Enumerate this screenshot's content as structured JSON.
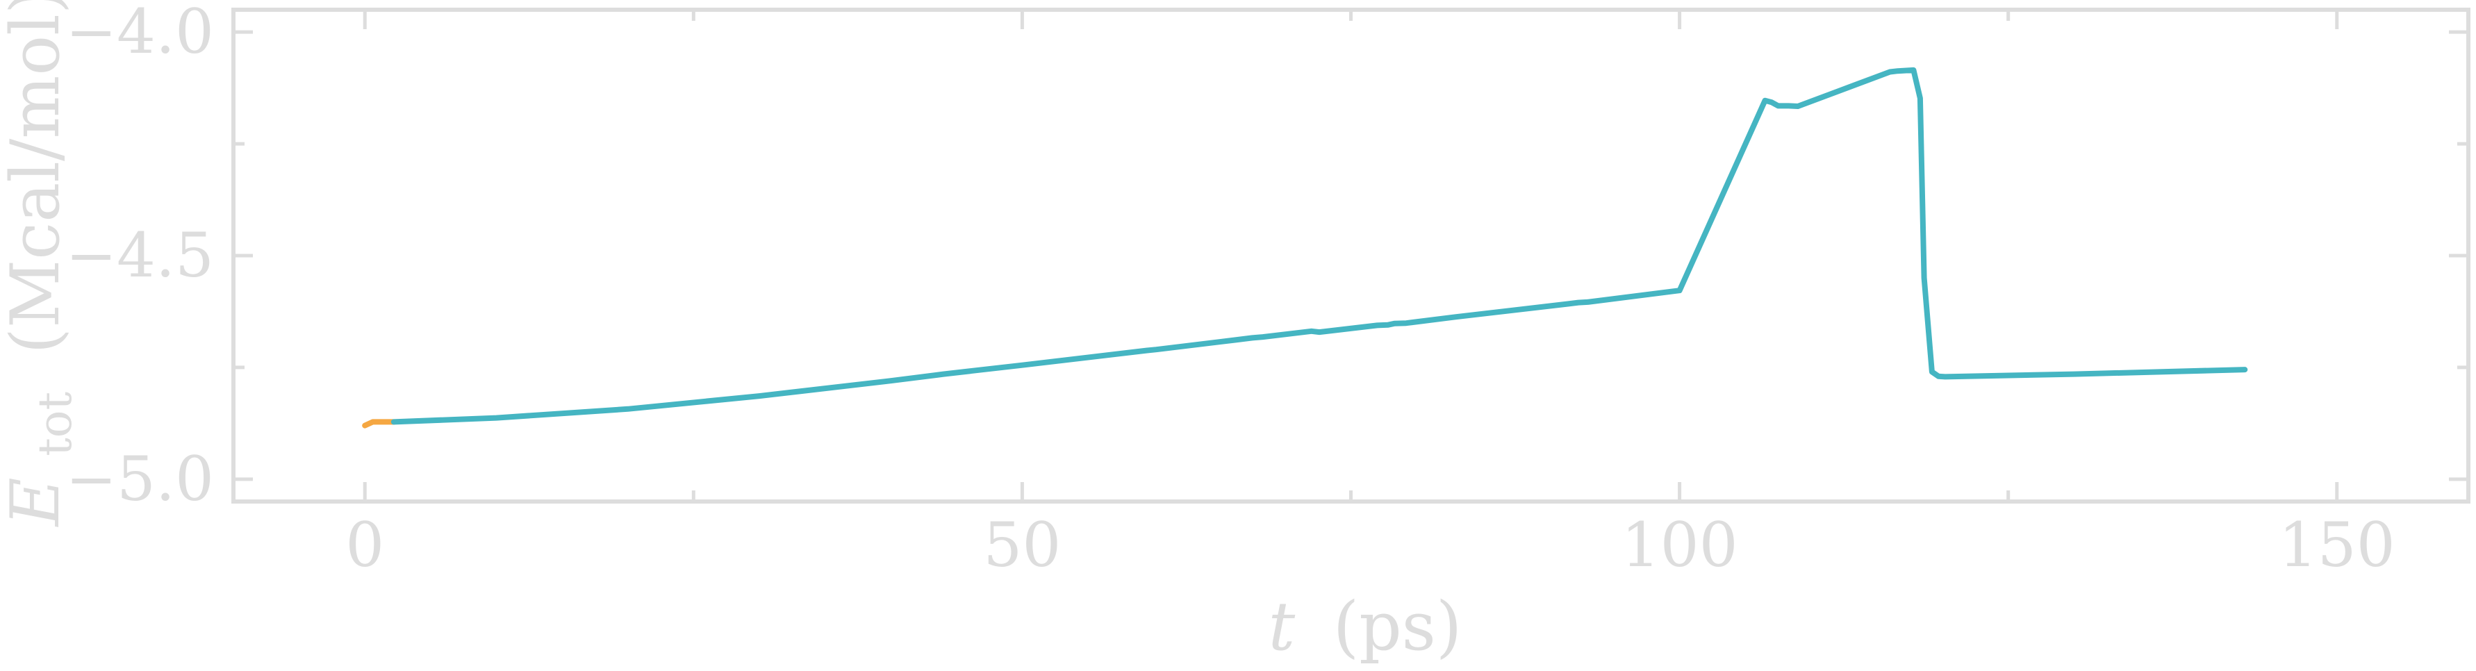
{
  "chart_data": {
    "type": "line",
    "xlabel_var": "t",
    "xlabel_unit": "(ps)",
    "ylabel_var": "E",
    "ylabel_sub": "tot",
    "ylabel_unit": "(Mcal/mol)",
    "xlim": [
      -10,
      160
    ],
    "ylim": [
      -5.05,
      -3.95
    ],
    "x_ticks": [
      0,
      50,
      100,
      150
    ],
    "x_tick_labels": [
      "0",
      "50",
      "100",
      "150"
    ],
    "x_minor_ticks": [
      25,
      75,
      125
    ],
    "y_ticks": [
      -5.0,
      -4.5,
      -4.0
    ],
    "y_tick_labels": [
      "−5.0",
      "−4.5",
      "−4.0"
    ],
    "y_minor_ticks": [
      -4.75,
      -4.25
    ],
    "grid": false,
    "colors": {
      "frame": "#dddddd",
      "text": "#dddddd",
      "series_1": "#f5a742",
      "series_2": "#45b5c2"
    },
    "series": [
      {
        "color": "#f5a742",
        "x": [
          0,
          0.6,
          1.2,
          2.2
        ],
        "y": [
          -4.88,
          -4.872,
          -4.872,
          -4.872
        ]
      },
      {
        "color": "#45b5c2",
        "x": [
          2.2,
          10,
          20,
          30,
          40,
          43.5,
          44,
          50,
          59.5,
          60.2,
          65,
          67.5,
          68.3,
          72,
          72.6,
          77,
          77.8,
          78.3,
          79.2,
          83,
          91.5,
          92.3,
          93,
          100,
          106.5,
          107,
          107.5,
          108.3,
          109,
          116,
          116.6,
          117.8,
          118.3,
          118.6,
          119.2,
          119.7,
          120.2,
          130,
          143
        ],
        "y": [
          -4.872,
          -4.863,
          -4.843,
          -4.814,
          -4.78,
          -4.767,
          -4.765,
          -4.745,
          -4.712,
          -4.71,
          -4.693,
          -4.684,
          -4.682,
          -4.669,
          -4.671,
          -4.656,
          -4.655,
          -4.652,
          -4.651,
          -4.637,
          -4.608,
          -4.605,
          -4.604,
          -4.578,
          -4.153,
          -4.157,
          -4.165,
          -4.165,
          -4.166,
          -4.089,
          -4.087,
          -4.085,
          -4.148,
          -4.55,
          -4.76,
          -4.77,
          -4.771,
          -4.765,
          -4.755
        ]
      }
    ]
  }
}
